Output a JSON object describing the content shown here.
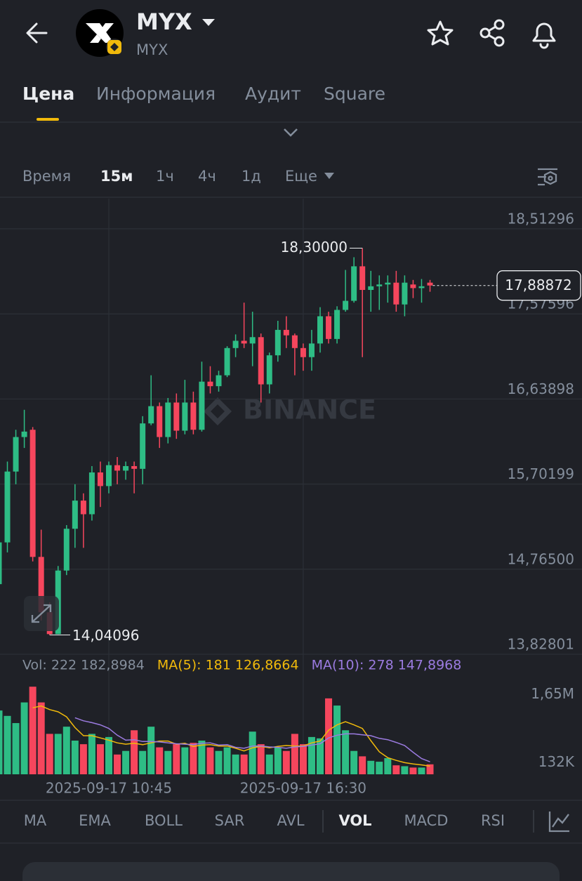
{
  "header": {
    "title": "MYX",
    "subtitle": "MYX"
  },
  "tabs": [
    "Цена",
    "Информация",
    "Аудит",
    "Square"
  ],
  "intervals": [
    "Время",
    "15м",
    "1ч",
    "4ч",
    "1д",
    "Еще"
  ],
  "watermark": "BINANCE",
  "indicators": [
    "MA",
    "EMA",
    "BOLL",
    "SAR",
    "AVL",
    "VOL",
    "MACD",
    "RSI"
  ],
  "chart_data": [
    {
      "type": "candlestick",
      "up_color": "#2ebd85",
      "down_color": "#f6465d",
      "open": [
        14.6,
        15.06,
        15.84,
        16.22,
        16.3,
        14.9,
        14.29,
        14.05,
        14.75,
        15.21,
        15.52,
        15.37,
        15.83,
        15.68,
        15.91,
        15.85,
        15.9,
        15.87,
        16.37,
        16.56,
        16.22,
        16.6,
        16.29,
        16.6,
        16.3,
        16.83,
        16.78,
        16.9,
        17.2,
        17.28,
        17.25,
        17.32,
        16.8,
        17.12,
        17.4,
        17.34,
        17.2,
        17.1,
        17.25,
        17.55,
        17.3,
        17.62,
        17.72,
        18.1,
        17.84,
        17.88,
        17.9,
        17.92,
        17.68,
        17.9,
        17.86,
        17.92
      ],
      "high": [
        15.1,
        15.95,
        16.3,
        16.52,
        16.33,
        15.2,
        14.4,
        14.8,
        15.25,
        15.7,
        15.6,
        15.9,
        15.95,
        15.95,
        16.0,
        15.95,
        15.95,
        16.45,
        16.9,
        16.6,
        16.65,
        16.7,
        16.85,
        16.72,
        17.05,
        17.0,
        16.95,
        17.22,
        17.35,
        17.7,
        17.6,
        17.36,
        17.15,
        17.5,
        17.55,
        17.36,
        17.25,
        17.4,
        17.65,
        17.6,
        17.66,
        18.06,
        18.2,
        18.3,
        18.05,
        18.0,
        18.0,
        18.05,
        18.0,
        17.95,
        17.96,
        17.95
      ],
      "low": [
        14.5,
        14.95,
        15.7,
        16.1,
        14.85,
        14.2,
        14.04096,
        14.05,
        14.7,
        15.0,
        15.0,
        15.3,
        15.45,
        15.6,
        15.7,
        15.75,
        15.6,
        15.7,
        16.35,
        16.1,
        16.15,
        16.2,
        16.25,
        16.25,
        16.28,
        16.7,
        16.72,
        16.88,
        17.1,
        17.2,
        17.0,
        16.6,
        16.7,
        17.05,
        17.2,
        16.9,
        16.95,
        16.95,
        17.15,
        17.25,
        17.25,
        17.6,
        17.7,
        17.1,
        17.6,
        17.62,
        17.7,
        17.6,
        17.55,
        17.75,
        17.7,
        17.82
      ],
      "close": [
        15.06,
        15.84,
        16.22,
        16.28,
        14.9,
        14.29,
        14.05,
        14.75,
        15.21,
        15.52,
        15.37,
        15.83,
        15.68,
        15.91,
        15.85,
        15.9,
        15.87,
        16.37,
        16.56,
        16.22,
        16.6,
        16.29,
        16.6,
        16.3,
        16.83,
        16.78,
        16.9,
        17.2,
        17.28,
        17.25,
        17.32,
        16.8,
        17.12,
        17.4,
        17.34,
        17.2,
        17.1,
        17.25,
        17.55,
        17.3,
        17.62,
        17.72,
        18.1,
        17.84,
        17.88,
        17.9,
        17.92,
        17.68,
        17.92,
        17.86,
        17.88,
        17.88872
      ],
      "ylim": [
        13.82801,
        18.845
      ],
      "yticks": [
        {
          "value": 18.51296,
          "label": "18,51296"
        },
        {
          "value": 17.57596,
          "label": "17,57596"
        },
        {
          "value": 16.63898,
          "label": "16,63898"
        },
        {
          "value": 15.70199,
          "label": "15,70199"
        },
        {
          "value": 14.765,
          "label": "14,76500"
        },
        {
          "value": 13.82801,
          "label": "13,82801"
        }
      ],
      "max_label": {
        "value": 18.3,
        "label": "18,30000"
      },
      "min_label": {
        "value": 14.04096,
        "label": "14,04096"
      },
      "last_price": {
        "value": 17.88872,
        "label": "17,88872"
      },
      "grid": true
    },
    {
      "type": "bar",
      "categories": [
        null,
        null,
        null,
        null,
        null,
        null,
        null,
        null,
        null,
        null,
        null,
        null,
        null,
        "2025-09-17 10:45",
        null,
        null,
        null,
        null,
        null,
        null,
        null,
        null,
        null,
        null,
        null,
        null,
        null,
        null,
        null,
        null,
        null,
        null,
        null,
        null,
        null,
        null,
        "2025-09-17 16:30",
        null,
        null,
        null,
        null,
        null,
        null,
        null,
        null,
        null,
        null,
        null,
        null,
        null,
        null,
        null
      ],
      "values": [
        1420000,
        1300000,
        1140000,
        1600000,
        1950000,
        1600000,
        900000,
        900000,
        1060000,
        750000,
        670000,
        900000,
        670000,
        830000,
        440000,
        520000,
        980000,
        520000,
        1060000,
        600000,
        520000,
        670000,
        600000,
        700000,
        750000,
        600000,
        520000,
        600000,
        440000,
        440000,
        950000,
        670000,
        440000,
        600000,
        520000,
        900000,
        670000,
        830000,
        800000,
        1690000,
        1530000,
        980000,
        520000,
        400000,
        300000,
        280000,
        360000,
        200000,
        180000,
        150000,
        150000,
        222182.8984
      ],
      "ma_lines": [
        {
          "color": "#f0b90b",
          "values": [
            null,
            null,
            null,
            null,
            1480000,
            1520000,
            1440000,
            1390000,
            1280000,
            1040000,
            860000,
            860000,
            810000,
            760000,
            700000,
            670000,
            690000,
            660000,
            700000,
            740000,
            740000,
            670000,
            690000,
            620000,
            650000,
            660000,
            630000,
            630000,
            580000,
            520000,
            590000,
            620000,
            590000,
            620000,
            640000,
            630000,
            630000,
            700000,
            740000,
            980000,
            1100000,
            1170000,
            1100000,
            1020000,
            750000,
            500000,
            370000,
            310000,
            260000,
            230000,
            210000,
            181126.8664
          ]
        },
        {
          "color": "#9b7be0",
          "values": [
            null,
            null,
            null,
            null,
            null,
            null,
            null,
            null,
            null,
            1260000,
            1190000,
            1150000,
            1100000,
            1020000,
            870000,
            760000,
            770000,
            730000,
            730000,
            720000,
            700000,
            680000,
            670000,
            660000,
            690000,
            700000,
            650000,
            660000,
            600000,
            580000,
            630000,
            630000,
            610000,
            600000,
            580000,
            610000,
            620000,
            650000,
            680000,
            810000,
            870000,
            900000,
            900000,
            880000,
            860000,
            800000,
            770000,
            710000,
            640000,
            490000,
            350000,
            278147.8968
          ]
        }
      ],
      "legend": [
        {
          "text": "Vol: 222 182,8984",
          "color": "#848e9c"
        },
        {
          "text": "MA(5): 181 126,8664",
          "color": "#f0b90b"
        },
        {
          "text": "MA(10): 278 147,8968",
          "color": "#9b7be0"
        }
      ],
      "ylim": [
        0,
        2000000
      ],
      "yticks": [
        {
          "value": 1650000,
          "label": "1,65M"
        },
        {
          "value": 132000,
          "label": "132K"
        }
      ]
    }
  ]
}
